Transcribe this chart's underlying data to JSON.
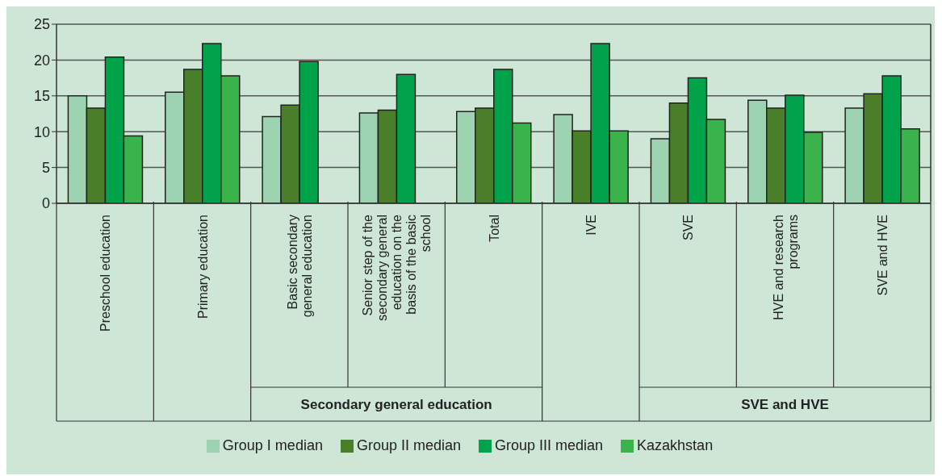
{
  "chart_data": {
    "type": "bar",
    "categories": [
      "Preschool education",
      "Primary education",
      "Basic secondary general education",
      "Senior step of the secondary general education on the basis of the basic school",
      "Total",
      "IVE",
      "SVE",
      "HVE and research programs",
      "SVE and HVE"
    ],
    "series": [
      {
        "name": "Group I median",
        "color": "#9dd3b0",
        "values": [
          15.0,
          15.5,
          12.1,
          12.6,
          12.8,
          12.4,
          9.0,
          14.4,
          13.3
        ]
      },
      {
        "name": "Group II median",
        "color": "#4a7f2a",
        "values": [
          13.3,
          18.7,
          13.7,
          13.0,
          13.3,
          10.1,
          14.0,
          13.3,
          15.3
        ]
      },
      {
        "name": "Group III median",
        "color": "#00a34a",
        "values": [
          20.4,
          22.3,
          19.8,
          18.0,
          18.7,
          22.3,
          17.5,
          15.1,
          17.8
        ]
      },
      {
        "name": "Kazakhstan",
        "color": "#3ab34a",
        "values": [
          9.4,
          17.8,
          null,
          null,
          11.2,
          10.1,
          11.7,
          9.9,
          10.4
        ]
      }
    ],
    "annotations": [
      "Secondary general education",
      "SVE and HVE"
    ],
    "ylim": [
      0,
      25
    ],
    "yticks": [
      0,
      5,
      10,
      15,
      20,
      25
    ],
    "grid": "y",
    "legend": "bottom"
  }
}
